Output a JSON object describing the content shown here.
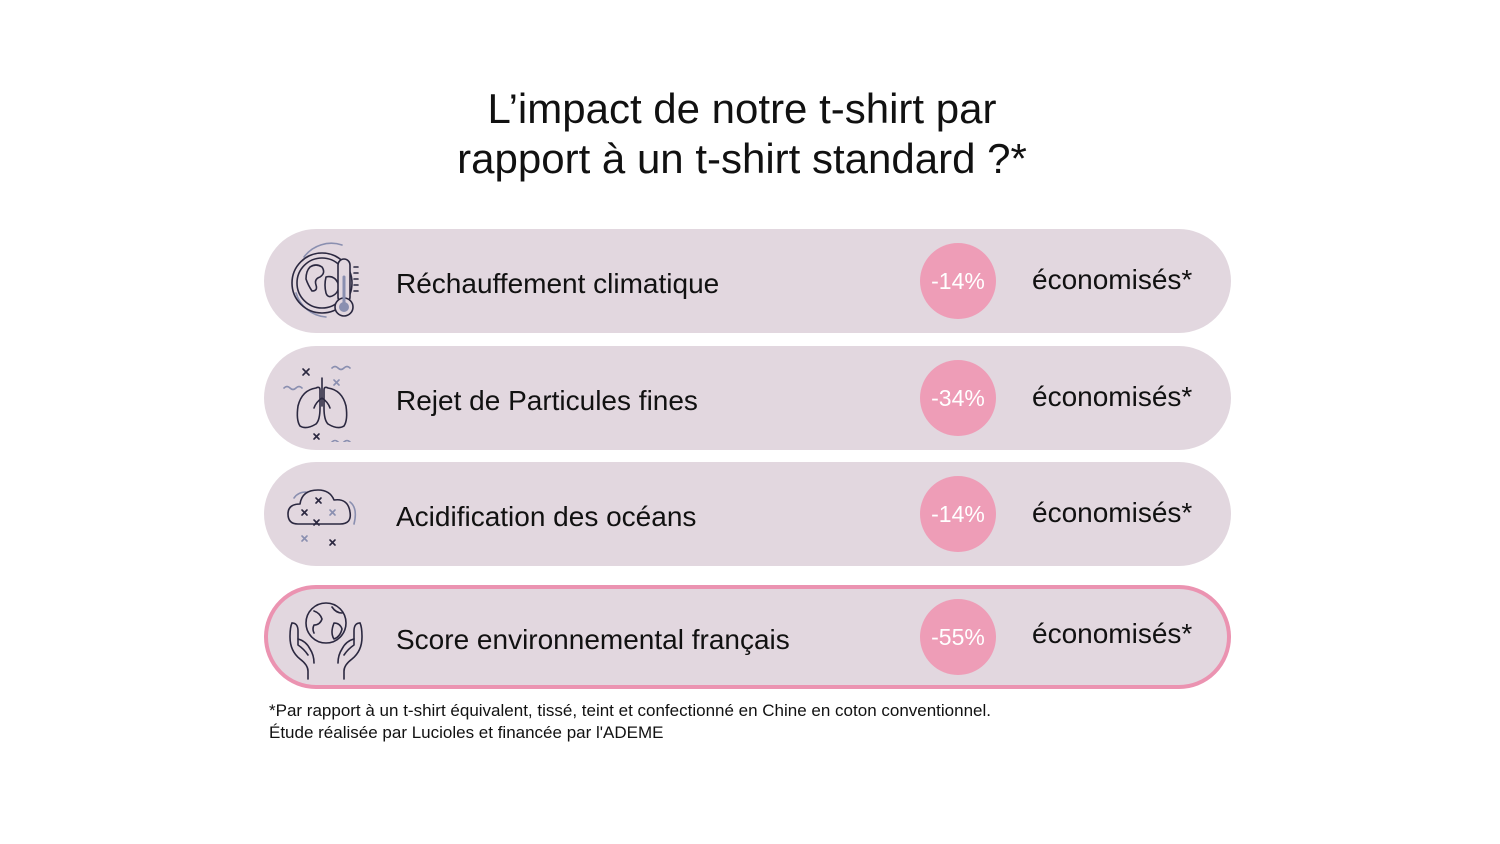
{
  "title": {
    "line1": "L’impact de notre t-shirt par",
    "line2": "rapport à un t-shirt standard ?*"
  },
  "rows": [
    {
      "icon": "globe-thermometer-icon",
      "label": "Réchauffement climatique",
      "value": "-14%",
      "suffix": "économisés*"
    },
    {
      "icon": "lungs-particles-icon",
      "label": "Rejet de Particules fines",
      "value": "-34%",
      "suffix": "économisés*"
    },
    {
      "icon": "cloud-particles-icon",
      "label": "Acidification des océans",
      "value": "-14%",
      "suffix": "économisés*"
    },
    {
      "icon": "hands-globe-icon",
      "label": "Score environnemental français",
      "value": "-55%",
      "suffix": "économisés*"
    }
  ],
  "footnote": {
    "line1": "*Par rapport à un t-shirt équivalent, tissé, teint et confectionné en Chine en coton conventionnel.",
    "line2": "Étude réalisée par Lucioles et financée par l'ADEME"
  },
  "colors": {
    "row_background": "#e2d7df",
    "badge": "#ee9db7",
    "highlight_border": "#eb93b1",
    "icon_stroke": "#2b2840",
    "icon_accent": "#8a8fb0"
  }
}
